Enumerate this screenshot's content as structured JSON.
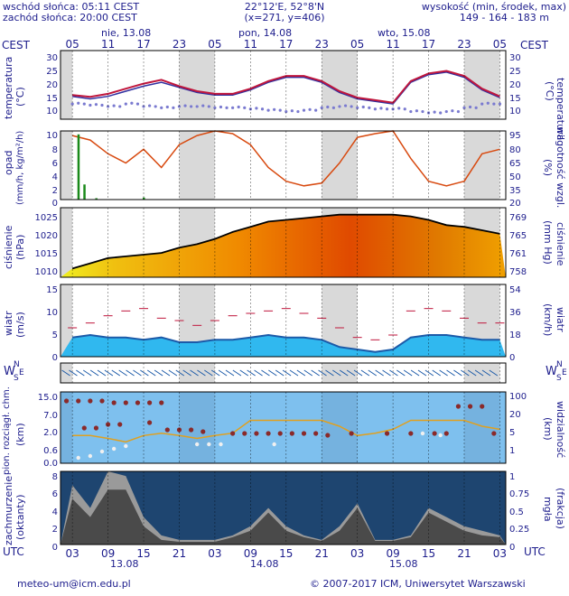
{
  "header": {
    "sunrise": "wschód słońca: 05:11 CEST",
    "sunset": "zachód słońca: 20:00 CEST",
    "coords": "22°12'E, 52°8'N",
    "grid": "(x=271,  y=406)",
    "elev_title": "wysokość (min, środek, max)",
    "elev_values": "149 - 164 - 183 m"
  },
  "timeline": {
    "tz_left": "CEST",
    "tz_right": "CEST",
    "local_hours": [
      "05",
      "11",
      "17",
      "23",
      "05",
      "11",
      "17",
      "23",
      "05",
      "11",
      "17",
      "23",
      "05"
    ],
    "days": [
      "nie, 13.08",
      "pon, 14.08",
      "wto, 15.08"
    ],
    "utc_label_left": "UTC",
    "utc_label_right": "UTC",
    "utc_hours": [
      "03",
      "09",
      "15",
      "21",
      "03",
      "09",
      "15",
      "21",
      "03",
      "09",
      "15",
      "21",
      "03"
    ],
    "utc_days": [
      "13.08",
      "14.08",
      "15.08"
    ]
  },
  "panels": {
    "temperature": {
      "left_label": "temperatura",
      "left_unit": "(°C)",
      "right_label": "temperatura",
      "right_unit": "(°C)",
      "ticks": [
        "30",
        "25",
        "20",
        "15",
        "10"
      ]
    },
    "precip": {
      "left_label": "opad",
      "left_unit": "(mm/h, kg/m²/h)",
      "right_label": "wilgotność wzgl.",
      "right_unit": "(%)",
      "left_ticks": [
        "10",
        "8",
        "6",
        "4",
        "2",
        "0"
      ],
      "right_ticks": [
        "95",
        "80",
        "65",
        "50",
        "35",
        "20"
      ]
    },
    "pressure": {
      "left_label": "ciśnienie",
      "left_unit": "(hPa)",
      "right_label": "ciśnienie",
      "right_unit": "(mm Hg)",
      "left_ticks": [
        "1025",
        "1020",
        "1015",
        "1010"
      ],
      "right_ticks": [
        "769",
        "765",
        "761",
        "758"
      ]
    },
    "wind": {
      "left_label": "wiatr",
      "left_unit": "(m/s)",
      "right_label": "wiatr",
      "right_unit": "(km/h)",
      "left_ticks": [
        "15",
        "10",
        "5",
        "0"
      ],
      "right_ticks": [
        "54",
        "36",
        "18",
        "0"
      ]
    },
    "direction": {
      "left": {
        "w": "W",
        "n": "N",
        "s": "S",
        "e": "E"
      },
      "right": {
        "w": "W",
        "n": "N",
        "s": "S",
        "e": "E"
      }
    },
    "visibility": {
      "left_label": "pion. rozciągł. chm.",
      "left_unit": "(km)",
      "right_label": "widzialność",
      "right_unit": "(km)",
      "left_ticks": [
        "15.0",
        "7.0",
        "2.0",
        "0.6",
        "0.0"
      ],
      "right_ticks": [
        "100",
        "20",
        "5",
        "1"
      ]
    },
    "cloud": {
      "left_label": "zachmurzenie",
      "left_unit": "(oktanty)",
      "right_label": "(frakcja)",
      "right_unit": "mgła",
      "left_ticks": [
        "8",
        "6",
        "4",
        "2",
        "0"
      ],
      "right_ticks": [
        "1",
        "0.75",
        "0.5",
        "0.25",
        "0"
      ]
    }
  },
  "footer": {
    "email": "meteo-um@icm.edu.pl",
    "copyright": "© 2007-2017 ICM, Uniwersytet Warszawski"
  },
  "colors": {
    "label_blue": "#1c1c8c",
    "night_gray": "#d9d9d9",
    "temp_red": "#c0163c",
    "temp_blue": "#3030a0",
    "humidity_orange": "#d84a10",
    "pressure_black": "#000000",
    "wind_blue": "#1c5aa8",
    "wind_light": "#30b8ef",
    "sky": "#7ec0ee",
    "cloud_dark": "#4a4a4a"
  },
  "chart_data": [
    {
      "type": "line",
      "name": "temperatura",
      "x_hours_from_start": [
        0,
        3,
        6,
        9,
        12,
        15,
        18,
        21,
        24,
        27,
        30,
        33,
        36,
        39,
        42,
        45,
        48,
        51,
        54,
        57,
        60,
        63,
        66,
        69,
        72
      ],
      "series": [
        {
          "name": "temperatura",
          "values": [
            14.5,
            13.8,
            15,
            17,
            19,
            20.5,
            18,
            16,
            15,
            15,
            17,
            20,
            22,
            22,
            20,
            16,
            13.5,
            12.5,
            11.5,
            20,
            23,
            24,
            22,
            17,
            14
          ]
        },
        {
          "name": "temperatura (niebieska)",
          "values": [
            14,
            13,
            14,
            16,
            18,
            19.5,
            17.5,
            15.5,
            14.5,
            14.5,
            16.5,
            19.5,
            21.5,
            21.5,
            19.5,
            15.5,
            13,
            12,
            11,
            19.5,
            22.5,
            23.5,
            21.5,
            16.5,
            13.5
          ]
        },
        {
          "name": "punkt rosy",
          "values": [
            11,
            10.5,
            10,
            11,
            10,
            9.5,
            10,
            10,
            9.5,
            9.5,
            9,
            8.5,
            8,
            8.5,
            9.5,
            10,
            9.5,
            9,
            9,
            8,
            7.5,
            8,
            9.5,
            11,
            11
          ]
        }
      ],
      "ylim": [
        5,
        32
      ]
    },
    {
      "type": "line",
      "name": "wilgotność wzgl.",
      "x_hours_from_start": [
        0,
        3,
        6,
        9,
        12,
        15,
        18,
        21,
        24,
        27,
        30,
        33,
        36,
        39,
        42,
        45,
        48,
        51,
        54,
        57,
        60,
        63,
        66,
        69,
        72
      ],
      "series": [
        {
          "name": "wilgotność",
          "values": [
            90,
            85,
            70,
            60,
            75,
            55,
            80,
            90,
            95,
            92,
            80,
            55,
            40,
            35,
            38,
            60,
            88,
            92,
            95,
            65,
            40,
            35,
            40,
            70,
            75
          ]
        }
      ],
      "precip": [
        {
          "x": 1,
          "value": 9.5
        },
        {
          "x": 2,
          "value": 2.2
        },
        {
          "x": 4,
          "value": 0.2
        },
        {
          "x": 12,
          "value": 0.3
        }
      ],
      "ylim": [
        20,
        95
      ]
    },
    {
      "type": "area",
      "name": "ciśnienie",
      "x_hours_from_start": [
        0,
        3,
        6,
        9,
        12,
        15,
        18,
        21,
        24,
        27,
        30,
        33,
        36,
        39,
        42,
        45,
        48,
        51,
        54,
        57,
        60,
        63,
        66,
        69,
        72
      ],
      "series": [
        {
          "name": "ciśnienie",
          "values": [
            1009.5,
            1011,
            1012.5,
            1013,
            1013.5,
            1014,
            1015.5,
            1016.5,
            1018,
            1020,
            1021.5,
            1023,
            1023.5,
            1024,
            1024.5,
            1025,
            1025,
            1025,
            1025,
            1024.5,
            1023.5,
            1022,
            1021.5,
            1020.5,
            1019.5
          ]
        }
      ],
      "ylim": [
        1007,
        1027
      ]
    },
    {
      "type": "area",
      "name": "wiatr",
      "x_hours_from_start": [
        0,
        3,
        6,
        9,
        12,
        15,
        18,
        21,
        24,
        27,
        30,
        33,
        36,
        39,
        42,
        45,
        48,
        51,
        54,
        57,
        60,
        63,
        66,
        69,
        72
      ],
      "series": [
        {
          "name": "wiatr średni",
          "values": [
            4,
            4.5,
            4,
            4,
            3.5,
            4,
            3,
            3,
            3.5,
            3.5,
            4,
            4.5,
            4,
            4,
            3.5,
            2,
            1.5,
            1,
            1.5,
            4,
            4.5,
            4.5,
            4,
            3.5,
            3.5
          ]
        },
        {
          "name": "porywy",
          "values": [
            6,
            7,
            8.5,
            9.5,
            10,
            8,
            7.5,
            6.5,
            7.5,
            8.5,
            9,
            9.5,
            10,
            9,
            8,
            6,
            4,
            3.5,
            4.5,
            9.5,
            10,
            9.5,
            8,
            7,
            7
          ]
        }
      ],
      "ylim": [
        0,
        15
      ]
    },
    {
      "type": "area",
      "name": "zachmurzenie",
      "x_hours_from_start": [
        0,
        3,
        6,
        9,
        12,
        15,
        18,
        21,
        24,
        27,
        30,
        33,
        36,
        39,
        42,
        45,
        48,
        51,
        54,
        57,
        60,
        63,
        66,
        69,
        72
      ],
      "series": [
        {
          "name": "zachmurzenie całkowite",
          "values": [
            6.5,
            4,
            8,
            7.5,
            3,
            1,
            0.5,
            0.5,
            0.5,
            1,
            2,
            4,
            2,
            1,
            0.5,
            2,
            4.5,
            0.5,
            0.5,
            1,
            4,
            3,
            2,
            1.5,
            1
          ]
        },
        {
          "name": "zachmurzenie niskie",
          "values": [
            5,
            3,
            6,
            6,
            2,
            0.5,
            0.3,
            0.3,
            0.3,
            0.8,
            1.5,
            3.5,
            1.5,
            0.8,
            0.4,
            1.5,
            4,
            0.4,
            0.4,
            0.8,
            3.5,
            2.5,
            1.5,
            1,
            0.8
          ]
        }
      ],
      "ylim": [
        0,
        8
      ]
    }
  ]
}
